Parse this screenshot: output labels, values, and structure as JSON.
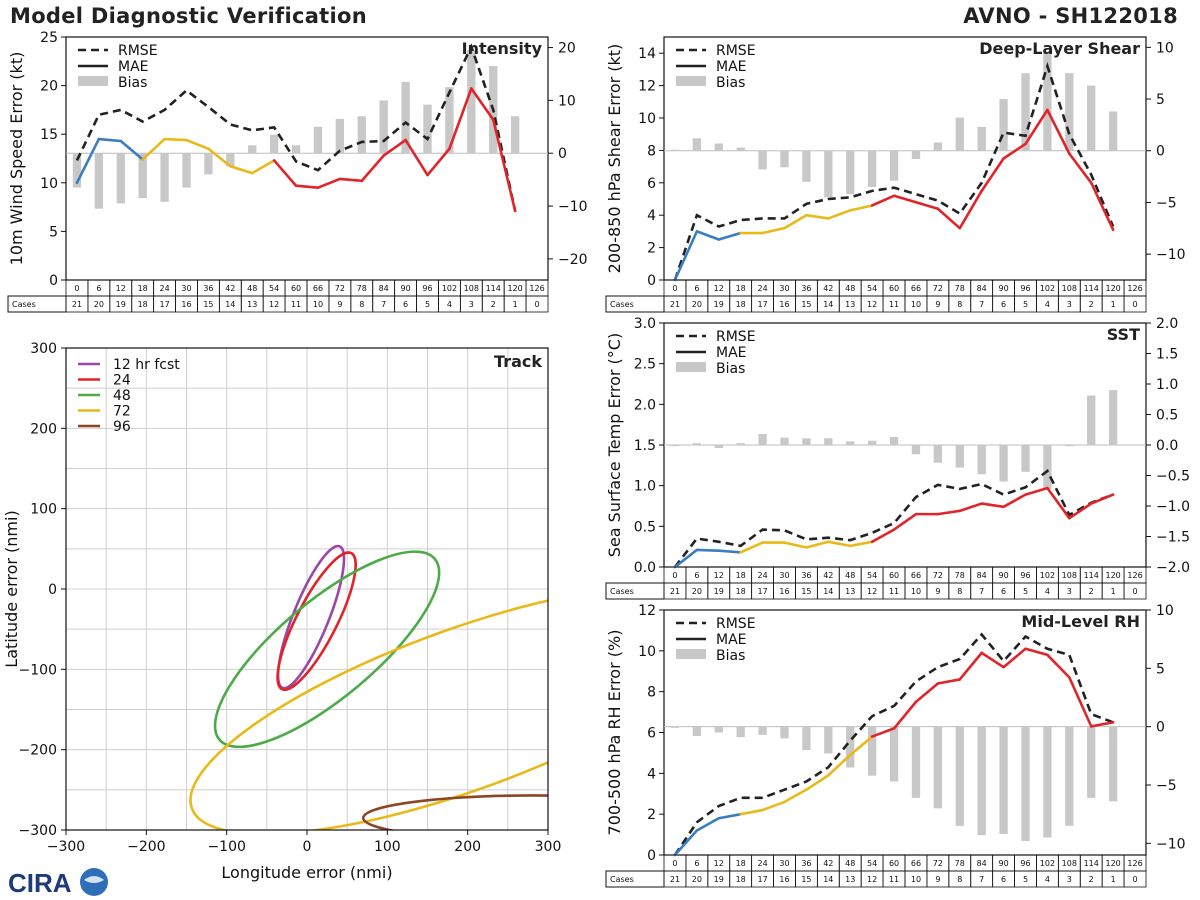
{
  "header": {
    "title": "Model Diagnostic Verification",
    "storm_id": "AVNO - SH122018"
  },
  "logo": {
    "text": "CIRA"
  },
  "colors": {
    "blue": "#3a7ebf",
    "gold": "#e8b919",
    "red": "#e0242a",
    "green": "#4cab48",
    "purple": "#9a48a6",
    "brown": "#8c4525",
    "bias": "#c8c8c8",
    "dark": "#222222"
  },
  "legend_labels": {
    "rmse": "RMSE",
    "mae": "MAE",
    "bias": "Bias"
  },
  "table": {
    "row_label": "Cases",
    "hours": [
      "0",
      "6",
      "12",
      "18",
      "24",
      "30",
      "36",
      "42",
      "48",
      "54",
      "60",
      "66",
      "72",
      "78",
      "84",
      "90",
      "96",
      "102",
      "108",
      "114",
      "120",
      "126"
    ],
    "cases": [
      "21",
      "20",
      "19",
      "18",
      "17",
      "16",
      "15",
      "14",
      "13",
      "12",
      "11",
      "10",
      "9",
      "8",
      "7",
      "6",
      "5",
      "4",
      "3",
      "2",
      "1",
      "0"
    ]
  },
  "chart_data": [
    {
      "id": "intensity",
      "type": "line",
      "title": "Intensity",
      "ylabel": "10m Wind Speed Error (kt)",
      "ylim": [
        0,
        25
      ],
      "yticks": [
        0,
        5,
        10,
        15,
        20,
        25
      ],
      "y2lim": [
        -24,
        22
      ],
      "y2ticks": [
        -20,
        -10,
        0,
        10,
        20
      ],
      "x": [
        0,
        6,
        12,
        18,
        24,
        30,
        36,
        42,
        48,
        54,
        60,
        66,
        72,
        78,
        84,
        90,
        96,
        102,
        108,
        114,
        120
      ],
      "rmse": [
        12.3,
        17.0,
        17.5,
        16.3,
        17.5,
        19.5,
        17.8,
        16.0,
        15.4,
        15.7,
        12.2,
        11.3,
        13.3,
        14.2,
        14.3,
        16.2,
        14.5,
        19.3,
        24.0,
        17.5,
        7.1
      ],
      "mae": [
        10.0,
        14.5,
        14.3,
        12.4,
        14.5,
        14.4,
        13.5,
        11.7,
        11.0,
        12.3,
        9.7,
        9.5,
        10.4,
        10.2,
        12.8,
        14.4,
        10.8,
        13.5,
        19.7,
        16.5,
        7.1
      ],
      "bias": [
        -6.5,
        -10.5,
        -9.5,
        -8.5,
        -9.2,
        -6.5,
        -4.0,
        -2.5,
        1.5,
        3.5,
        1.5,
        5.0,
        6.5,
        7.0,
        10.0,
        13.5,
        9.2,
        12.5,
        19.5,
        16.5,
        7.0
      ]
    },
    {
      "id": "shear",
      "type": "line",
      "title": "Deep-Layer Shear",
      "ylabel": "200-850 hPa Shear Error (kt)",
      "ylim": [
        0,
        15
      ],
      "yticks": [
        0,
        2,
        4,
        6,
        8,
        10,
        12,
        14
      ],
      "y2lim": [
        -12.5,
        11
      ],
      "y2ticks": [
        -10,
        -5,
        0,
        5,
        10
      ],
      "x": [
        0,
        6,
        12,
        18,
        24,
        30,
        36,
        42,
        48,
        54,
        60,
        66,
        72,
        78,
        84,
        90,
        96,
        102,
        108,
        114,
        120
      ],
      "rmse": [
        0.0,
        4.0,
        3.3,
        3.7,
        3.8,
        3.8,
        4.7,
        5.0,
        5.1,
        5.5,
        5.7,
        5.3,
        4.9,
        4.1,
        6.0,
        9.1,
        8.9,
        13.2,
        9.0,
        6.5,
        3.3
      ],
      "mae": [
        0.0,
        3.0,
        2.5,
        2.9,
        2.9,
        3.2,
        4.0,
        3.8,
        4.3,
        4.6,
        5.2,
        4.8,
        4.4,
        3.2,
        5.5,
        7.5,
        8.4,
        10.5,
        7.8,
        6.0,
        3.1
      ],
      "bias": [
        0.1,
        1.2,
        0.7,
        0.3,
        -1.8,
        -1.6,
        -3.0,
        -4.5,
        -4.2,
        -3.5,
        -2.9,
        -0.8,
        0.8,
        3.2,
        2.3,
        5.0,
        7.5,
        9.5,
        7.5,
        6.3,
        3.8
      ]
    },
    {
      "id": "sst",
      "type": "line",
      "title": "SST",
      "ylabel": "Sea Surface Temp Error (°C)",
      "ylim": [
        0,
        3.0
      ],
      "yticks": [
        0.0,
        0.5,
        1.0,
        1.5,
        2.0,
        2.5,
        3.0
      ],
      "y2lim": [
        -2.0,
        2.0
      ],
      "y2ticks": [
        -2.0,
        -1.5,
        -1.0,
        -0.5,
        0.0,
        0.5,
        1.0,
        1.5,
        2.0
      ],
      "x": [
        0,
        6,
        12,
        18,
        24,
        30,
        36,
        42,
        48,
        54,
        60,
        66,
        72,
        78,
        84,
        90,
        96,
        102,
        108,
        114,
        120
      ],
      "rmse": [
        0.0,
        0.35,
        0.31,
        0.26,
        0.46,
        0.45,
        0.34,
        0.36,
        0.33,
        0.42,
        0.54,
        0.86,
        1.01,
        0.96,
        1.02,
        0.89,
        0.98,
        1.18,
        0.64,
        0.79,
        0.89
      ],
      "mae": [
        0.0,
        0.21,
        0.2,
        0.18,
        0.3,
        0.3,
        0.24,
        0.31,
        0.26,
        0.31,
        0.46,
        0.65,
        0.65,
        0.69,
        0.78,
        0.74,
        0.89,
        0.97,
        0.6,
        0.78,
        0.89
      ],
      "bias": [
        0.0,
        0.03,
        -0.05,
        0.03,
        0.18,
        0.12,
        0.11,
        0.11,
        0.06,
        0.07,
        0.13,
        -0.15,
        -0.29,
        -0.37,
        -0.48,
        -0.6,
        -0.44,
        -0.72,
        0.0,
        0.81,
        0.9
      ]
    },
    {
      "id": "rh",
      "type": "line",
      "title": "Mid-Level RH",
      "ylabel": "700-500 hPa RH Error (%)",
      "ylim": [
        0,
        12
      ],
      "yticks": [
        0,
        2,
        4,
        6,
        8,
        10,
        12
      ],
      "y2lim": [
        -11,
        10
      ],
      "y2ticks": [
        -10,
        -5,
        0,
        5,
        10
      ],
      "x": [
        0,
        6,
        12,
        18,
        24,
        30,
        36,
        42,
        48,
        54,
        60,
        66,
        72,
        78,
        84,
        90,
        96,
        102,
        108,
        114,
        120
      ],
      "rmse": [
        0.0,
        1.6,
        2.4,
        2.8,
        2.8,
        3.2,
        3.6,
        4.3,
        5.6,
        6.8,
        7.3,
        8.5,
        9.2,
        9.6,
        10.8,
        9.5,
        10.7,
        10.1,
        9.8,
        6.9,
        6.5
      ],
      "mae": [
        0.0,
        1.2,
        1.8,
        2.0,
        2.2,
        2.6,
        3.2,
        3.9,
        4.9,
        5.8,
        6.2,
        7.5,
        8.4,
        8.6,
        9.9,
        9.2,
        10.1,
        9.8,
        8.7,
        6.3,
        6.5
      ],
      "bias": [
        0.0,
        -0.8,
        -0.5,
        -0.9,
        -0.7,
        -1.0,
        -2.0,
        -2.3,
        -3.5,
        -4.2,
        -4.7,
        -6.1,
        -7.0,
        -8.5,
        -9.3,
        -9.2,
        -9.8,
        -9.5,
        -8.5,
        -6.1,
        -6.4
      ]
    },
    {
      "id": "track",
      "type": "scatter",
      "title": "Track",
      "xlabel": "Longitude error (nmi)",
      "ylabel": "Latitude error (nmi)",
      "xlim": [
        -300,
        300
      ],
      "ylim": [
        -300,
        300
      ],
      "xticks": [
        -300,
        -200,
        -100,
        0,
        100,
        200,
        300
      ],
      "yticks": [
        -300,
        -200,
        -100,
        0,
        100,
        200,
        300
      ],
      "legend": [
        "12 hr fcst",
        "24",
        "48",
        "72",
        "96"
      ],
      "ellipses": [
        {
          "label": "12 hr fcst",
          "color": "purple",
          "cx": 5,
          "cy": -35,
          "a": 95,
          "b": 22,
          "angle": -68
        },
        {
          "label": "24",
          "color": "red",
          "cx": 12,
          "cy": -40,
          "a": 95,
          "b": 25,
          "angle": -63
        },
        {
          "label": "48",
          "color": "green",
          "cx": 25,
          "cy": -75,
          "a": 175,
          "b": 60,
          "angle": -40
        },
        {
          "label": "72",
          "color": "gold",
          "cx": 195,
          "cy": -150,
          "a": 360,
          "b": 100,
          "angle": -20
        },
        {
          "label": "96",
          "color": "brown",
          "cx": 280,
          "cy": -285,
          "a": 210,
          "b": 28,
          "angle": 0
        }
      ]
    }
  ]
}
